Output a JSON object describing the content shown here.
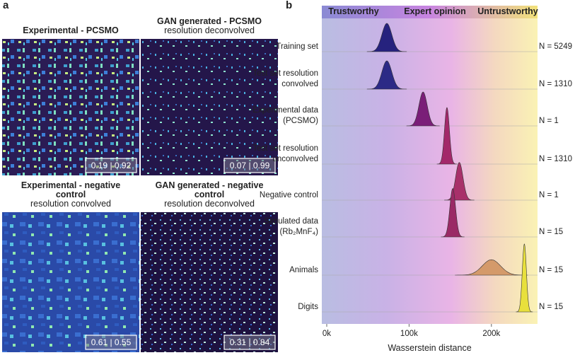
{
  "panel_a": {
    "label": "a",
    "images": [
      {
        "title": [
          "Experimental - PCSMO"
        ],
        "subtitle": [],
        "score_label": "0.19 | 0.92"
      },
      {
        "title": [
          "GAN generated - PCSMO"
        ],
        "subtitle": [
          "resolution deconvolved"
        ],
        "score_label": "0.07 | 0.99"
      },
      {
        "title": [
          "Experimental - negative",
          "control"
        ],
        "subtitle": [
          "resolution convolved"
        ],
        "score_label": "0.61 | 0.55"
      },
      {
        "title": [
          "GAN generated - negative",
          "control"
        ],
        "subtitle": [
          "resolution deconvolved"
        ],
        "score_label": "0.31 | 0.84"
      }
    ]
  },
  "chart_data": {
    "type": "ridgeline",
    "panel_label": "b",
    "zones": [
      "Trustworthy",
      "Expert opinion",
      "Untrustworthy"
    ],
    "categories": [
      [
        "Training set"
      ],
      [
        "Test set resolution",
        "convolved"
      ],
      [
        "Experimental data",
        "(PCSMO)"
      ],
      [
        "Test set resolution",
        "unconvolved"
      ],
      [
        "Negative control"
      ],
      [
        "Simulated data",
        "(Rb₂MnF₄)"
      ],
      [
        "Animals"
      ],
      [
        "Digits"
      ]
    ],
    "values": [
      73000,
      73000,
      117000,
      146000,
      161000,
      153000,
      200000,
      240000
    ],
    "spread": [
      6000,
      6000,
      5000,
      3000,
      4500,
      3500,
      11000,
      2500
    ],
    "colors": [
      "#26227e",
      "#2c2a86",
      "#7a1e78",
      "#a3286a",
      "#a8306a",
      "#9a2a66",
      "#d49a6a",
      "#e8e03c"
    ],
    "counts": [
      5249,
      1310,
      1,
      1310,
      1,
      15,
      15,
      15
    ],
    "count_labels": [
      "N = 5249",
      "N = 1310",
      "N = 1",
      "N = 1310",
      "N = 1",
      "N = 15",
      "N = 15",
      "N = 15"
    ],
    "xlabel": "Wasserstein distance",
    "xlim": [
      -6000,
      256000
    ],
    "xticks": [
      {
        "value": 0,
        "label": "0k"
      },
      {
        "value": 100000,
        "label": "100k"
      },
      {
        "value": 200000,
        "label": "200k"
      }
    ]
  }
}
